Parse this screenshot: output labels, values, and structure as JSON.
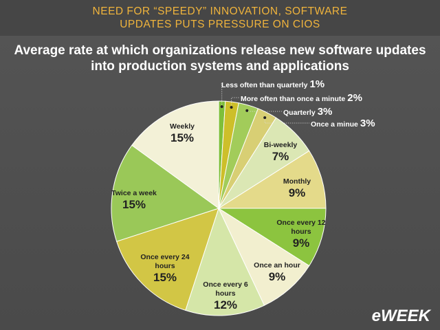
{
  "header": "NEED FOR “SPEEDY” INNOVATION, SOFTWARE UPDATES PUTS PRESSURE ON CIOS",
  "logo": "eWEEK",
  "chart_data": {
    "type": "pie",
    "title": "Average rate at which organizations release new software updates into production systems and applications",
    "categories": [
      "Less often than quarterly",
      "More often than once a minute",
      "Quarterly",
      "Once a minue",
      "Bi-weekly",
      "Monthly",
      "Once every 12 hours",
      "Once an hour",
      "Once every 6 hours",
      "Once every 24 hours",
      "Twice a week",
      "Weekly"
    ],
    "values": [
      1,
      2,
      3,
      3,
      7,
      9,
      9,
      9,
      12,
      15,
      15,
      15
    ],
    "value_labels": [
      "1%",
      "2%",
      "3%",
      "3%",
      "7%",
      "9%",
      "9%",
      "9%",
      "12%",
      "15%",
      "15%",
      "15%"
    ],
    "colors": [
      "#7fbf3a",
      "#cdbf2a",
      "#a2cc5a",
      "#d8cf74",
      "#dbe7b4",
      "#e4da8a",
      "#8cc43f",
      "#f2efcf",
      "#d5e6a8",
      "#d2c645",
      "#9ac858",
      "#f3f1d7"
    ]
  }
}
